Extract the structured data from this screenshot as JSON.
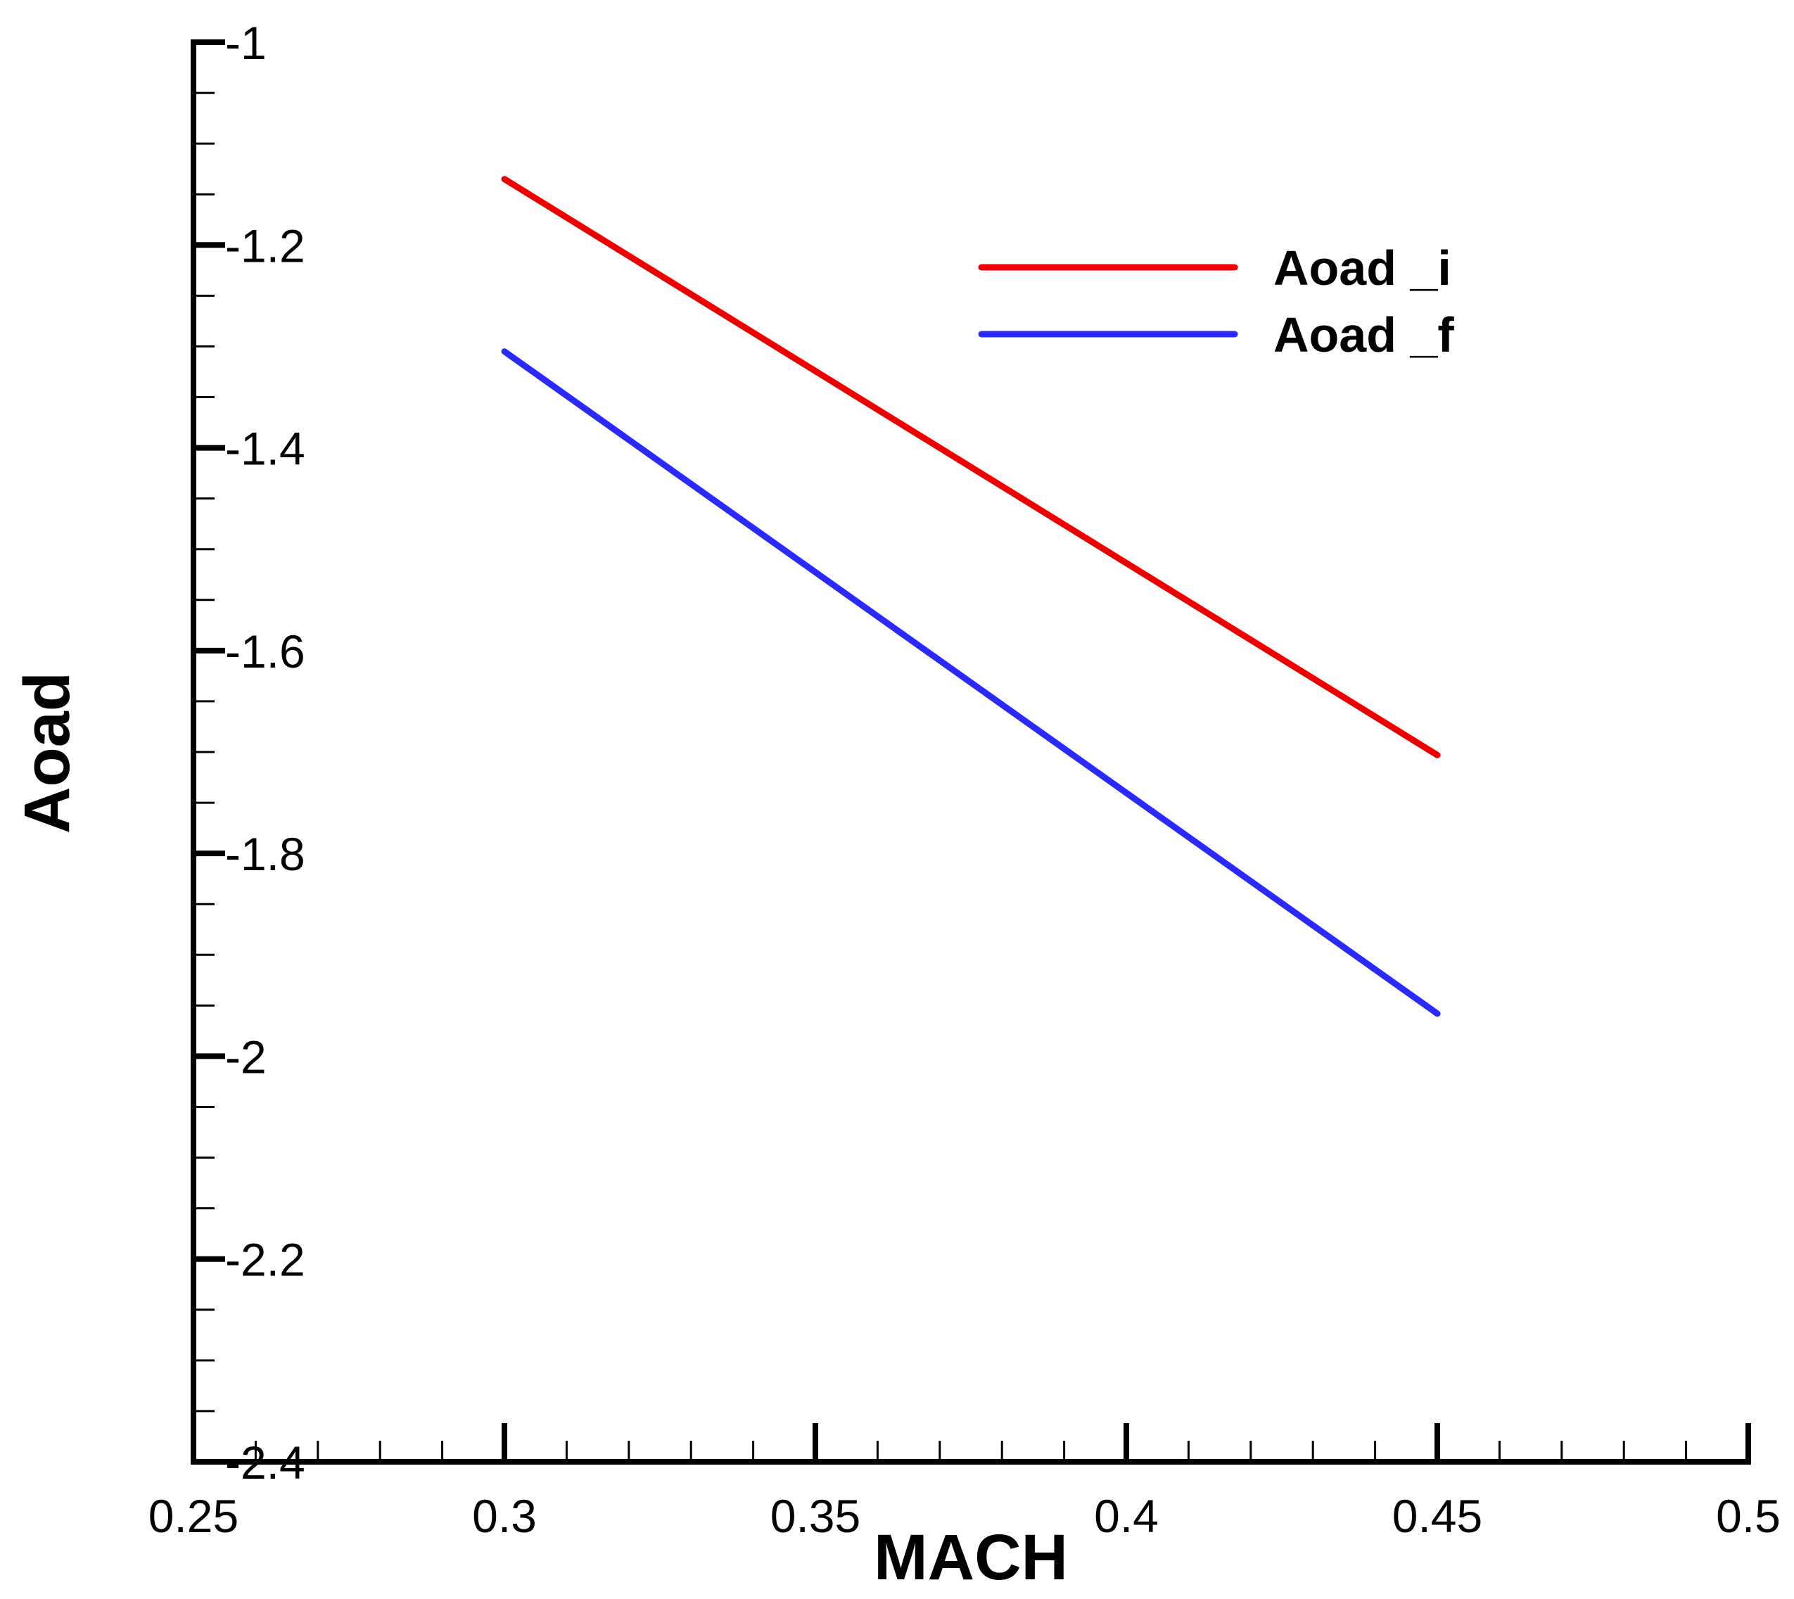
{
  "chart_data": {
    "type": "line",
    "title": "",
    "xlabel": "MACH",
    "ylabel": "Aoad",
    "xlim": [
      0.25,
      0.5
    ],
    "ylim": [
      -2.4,
      -1
    ],
    "xticks": [
      0.25,
      0.3,
      0.35,
      0.4,
      0.45,
      0.5
    ],
    "xtick_labels": [
      "0.25",
      "0.3",
      "0.35",
      "0.4",
      "0.45",
      "0.5"
    ],
    "yticks": [
      -1,
      -1.2,
      -1.4,
      -1.6,
      -1.8,
      -2,
      -2.2,
      -2.4
    ],
    "ytick_labels": [
      "-1",
      "-1.2",
      "-1.4",
      "-1.6",
      "-1.8",
      "-2",
      "-2.2",
      "-2.4"
    ],
    "grid": false,
    "legend_position": "top-right",
    "series": [
      {
        "name": "Aoad _i",
        "color": "#ee0000",
        "x": [
          0.3,
          0.45
        ],
        "y": [
          -1.135,
          -1.703
        ]
      },
      {
        "name": "Aoad _f",
        "color": "#2a2aff",
        "x": [
          0.3,
          0.45
        ],
        "y": [
          -1.305,
          -1.958
        ]
      }
    ]
  }
}
